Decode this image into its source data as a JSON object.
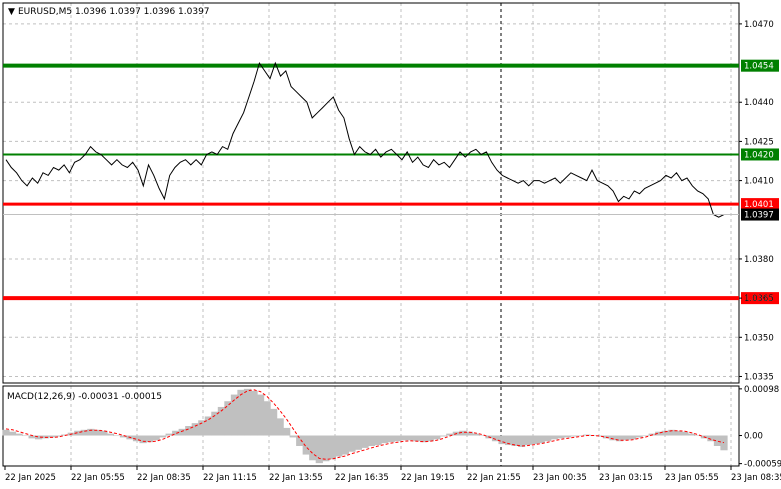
{
  "window": {
    "symbol_header": "EURUSD,M5  1.0396 1.0397 1.0396 1.0397",
    "menu_arrow": "triangle-down-icon"
  },
  "price_axis": {
    "ticks": [
      "1.0470",
      "1.0440",
      "1.0425",
      "1.0410",
      "1.0380",
      "1.0365",
      "1.0350",
      "1.0335"
    ],
    "tick_values": [
      1.047,
      1.044,
      1.0425,
      1.041,
      1.038,
      1.0365,
      1.035,
      1.0335
    ],
    "range": [
      1.03325,
      1.0478
    ],
    "current_price": "1.0397",
    "hidden_tick": "1.0395"
  },
  "levels": [
    {
      "price": 1.0454,
      "label": "1.0454",
      "color": "#008000",
      "width": 4
    },
    {
      "price": 1.042,
      "label": "1.0420",
      "color": "#008000",
      "width": 2
    },
    {
      "price": 1.0401,
      "label": "1.0401",
      "color": "#ff0000",
      "width": 3
    },
    {
      "price": 1.0365,
      "label": "1.0365",
      "color": "#ff0000",
      "width": 4
    }
  ],
  "macd": {
    "header": "MACD(12,26,9) -0.00031 -0.00015",
    "ticks": [
      "0.00098",
      "0.00",
      "-0.00059"
    ],
    "tick_values": [
      0.00098,
      0.0,
      -0.00059
    ],
    "range": [
      -0.00064,
      0.00104
    ],
    "histogram_color": "#c0c0c0",
    "signal_color": "#ff0000"
  },
  "time_axis": {
    "labels": [
      "22 Jan 2025",
      "22 Jan 05:55",
      "22 Jan 08:35",
      "22 Jan 11:15",
      "22 Jan 13:55",
      "22 Jan 16:35",
      "22 Jan 19:15",
      "22 Jan 21:55",
      "23 Jan 00:35",
      "23 Jan 03:15",
      "23 Jan 05:55",
      "23 Jan 08:35"
    ]
  },
  "chart_data": {
    "type": "line",
    "series": [
      {
        "values": [
          1.0418,
          1.0415,
          1.0413,
          1.041,
          1.0408,
          1.0411,
          1.0409,
          1.0413,
          1.0412,
          1.0415,
          1.0414,
          1.0416,
          1.0413,
          1.0417,
          1.0418,
          1.042,
          1.0423,
          1.0421,
          1.042,
          1.0418,
          1.0416,
          1.0418,
          1.0416,
          1.0415,
          1.0417,
          1.0414,
          1.0408,
          1.0416,
          1.0412,
          1.0407,
          1.0403,
          1.0412,
          1.0415,
          1.0417,
          1.0418,
          1.0416,
          1.0418,
          1.0416,
          1.042,
          1.0421,
          1.042,
          1.0423,
          1.0422,
          1.0428,
          1.0432,
          1.0436,
          1.0442,
          1.0448,
          1.0455,
          1.0452,
          1.0449,
          1.0455,
          1.045,
          1.0452,
          1.0446,
          1.0444,
          1.0442,
          1.044,
          1.0434,
          1.0436,
          1.0438,
          1.044,
          1.0442,
          1.0437,
          1.0434,
          1.0426,
          1.042,
          1.0423,
          1.0421,
          1.042,
          1.0422,
          1.0419,
          1.0421,
          1.0422,
          1.042,
          1.0418,
          1.0421,
          1.0417,
          1.0419,
          1.0416,
          1.0415,
          1.0418,
          1.0416,
          1.0417,
          1.0415,
          1.0418,
          1.0421,
          1.0419,
          1.0421,
          1.0422,
          1.042,
          1.0421,
          1.0417,
          1.0414,
          1.0412,
          1.0411,
          1.041,
          1.0409,
          1.041,
          1.0408,
          1.041,
          1.041,
          1.0409,
          1.041,
          1.0411,
          1.0409,
          1.0411,
          1.0413,
          1.0412,
          1.0411,
          1.041,
          1.0414,
          1.041,
          1.0409,
          1.0408,
          1.0406,
          1.0402,
          1.0404,
          1.0403,
          1.0406,
          1.0405,
          1.0407,
          1.0408,
          1.0409,
          1.041,
          1.0412,
          1.0411,
          1.0413,
          1.041,
          1.0411,
          1.0408,
          1.0406,
          1.0405,
          1.0403,
          1.0397,
          1.0396,
          1.0397
        ]
      }
    ],
    "macd_histogram": [
      0.00012,
      8e-05,
      4e-05,
      0.0,
      -6e-05,
      -8e-05,
      -6e-05,
      -4e-05,
      -2e-05,
      2e-05,
      6e-05,
      0.0001,
      0.00012,
      0.00014,
      0.00012,
      0.0001,
      4e-05,
      0.0,
      -4e-05,
      -8e-05,
      -0.00012,
      -0.00016,
      -0.00014,
      -0.0001,
      -4e-05,
      4e-05,
      0.0001,
      0.00014,
      0.0002,
      0.00026,
      0.00032,
      0.0004,
      0.0005,
      0.0006,
      0.00072,
      0.00086,
      0.00096,
      0.00098,
      0.00094,
      0.00086,
      0.00072,
      0.00056,
      0.00036,
      0.00016,
      -4e-05,
      -0.00022,
      -0.0004,
      -0.00052,
      -0.00058,
      -0.00054,
      -0.0005,
      -0.00044,
      -0.0004,
      -0.00034,
      -0.0003,
      -0.00026,
      -0.00022,
      -0.0002,
      -0.00016,
      -0.00014,
      -0.00012,
      -0.0001,
      -0.0001,
      -0.00012,
      -0.00014,
      -0.00012,
      -8e-05,
      -2e-05,
      4e-05,
      8e-05,
      0.0001,
      8e-05,
      4e-05,
      0.0,
      -6e-05,
      -0.00012,
      -0.00018,
      -0.0002,
      -0.00022,
      -0.00024,
      -0.0002,
      -0.00018,
      -0.00016,
      -0.00012,
      -8e-05,
      -6e-05,
      -4e-05,
      -2e-05,
      0.0,
      2e-05,
      0.0,
      -2e-05,
      -6e-05,
      -0.0001,
      -0.00012,
      -0.0001,
      -8e-05,
      -4e-05,
      0.0,
      4e-05,
      8e-05,
      0.0001,
      0.00012,
      0.0001,
      8e-05,
      4e-05,
      0.0,
      -6e-05,
      -0.00012,
      -0.00022,
      -0.00031
    ],
    "macd_signal": [
      0.00014,
      0.00012,
      8e-05,
      4e-05,
      0.0,
      -3e-05,
      -4e-05,
      -4e-05,
      -3e-05,
      0.0,
      3e-05,
      6e-05,
      9e-05,
      0.00011,
      0.00011,
      0.0001,
      7e-05,
      4e-05,
      0.0,
      -4e-05,
      -8e-05,
      -0.00012,
      -0.00013,
      -0.00012,
      -8e-05,
      -2e-05,
      4e-05,
      9e-05,
      0.00014,
      0.0002,
      0.00026,
      0.00033,
      0.00042,
      0.00052,
      0.00063,
      0.00075,
      0.00086,
      0.00094,
      0.00096,
      0.00092,
      0.00082,
      0.00068,
      0.00052,
      0.00034,
      0.00014,
      -6e-05,
      -0.00024,
      -0.00038,
      -0.00048,
      -0.0005,
      -0.00049,
      -0.00046,
      -0.00043,
      -0.00038,
      -0.00034,
      -0.0003,
      -0.00026,
      -0.00022,
      -0.00019,
      -0.00016,
      -0.00014,
      -0.00012,
      -0.00011,
      -0.00012,
      -0.00013,
      -0.00012,
      -0.0001,
      -6e-05,
      -1e-05,
      4e-05,
      7e-05,
      7e-05,
      5e-05,
      2e-05,
      -3e-05,
      -8e-05,
      -0.00013,
      -0.00017,
      -0.0002,
      -0.00022,
      -0.00021,
      -0.00019,
      -0.00017,
      -0.00014,
      -0.00011,
      -8e-05,
      -6e-05,
      -4e-05,
      -2e-05,
      0.0,
      0.0,
      -1e-05,
      -4e-05,
      -7e-05,
      -0.0001,
      -0.0001,
      -9e-05,
      -6e-05,
      -3e-05,
      1e-05,
      5e-05,
      8e-05,
      0.0001,
      0.0001,
      9e-05,
      6e-05,
      2e-05,
      -3e-05,
      -8e-05,
      -0.00012,
      -0.00015
    ]
  }
}
